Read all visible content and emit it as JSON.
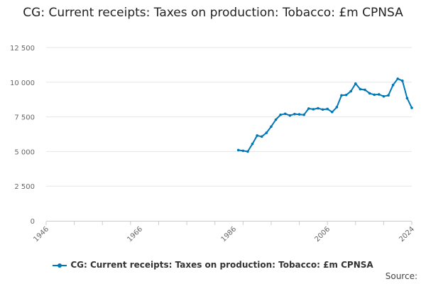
{
  "chart_data": {
    "type": "line",
    "title": "CG: Current receipts: Taxes on production: Tobacco: £m CPNSA",
    "xlabel": "",
    "ylabel": "",
    "xlim": [
      1946,
      2024
    ],
    "ylim": [
      0,
      12500
    ],
    "x_ticks": [
      "1946",
      "1966",
      "1986",
      "2006",
      "2024"
    ],
    "y_ticks": [
      "0",
      "2 500",
      "5 000",
      "7 500",
      "10 000",
      "12 500"
    ],
    "grid": true,
    "legend_position": "bottom",
    "series": [
      {
        "name": "CG: Current receipts: Taxes on production: Tobacco: £m CPNSA",
        "color": "#0077b6",
        "x": [
          1987,
          1988,
          1989,
          1990,
          1991,
          1992,
          1993,
          1994,
          1995,
          1996,
          1997,
          1998,
          1999,
          2000,
          2001,
          2002,
          2003,
          2004,
          2005,
          2006,
          2007,
          2008,
          2009,
          2010,
          2011,
          2012,
          2013,
          2014,
          2015,
          2016,
          2017,
          2018,
          2019,
          2020,
          2021,
          2022,
          2023,
          2024
        ],
        "y": [
          5100,
          5050,
          5000,
          5550,
          6150,
          6080,
          6350,
          6800,
          7300,
          7650,
          7720,
          7600,
          7700,
          7680,
          7650,
          8100,
          8050,
          8120,
          8030,
          8070,
          7850,
          8200,
          9050,
          9080,
          9350,
          9900,
          9500,
          9450,
          9200,
          9100,
          9120,
          8980,
          9050,
          9800,
          10250,
          10100,
          8850,
          8150
        ]
      }
    ]
  },
  "legend": {
    "label": "CG: Current receipts: Taxes on production: Tobacco: £m CPNSA"
  },
  "footer": {
    "source_label": "Source:"
  }
}
